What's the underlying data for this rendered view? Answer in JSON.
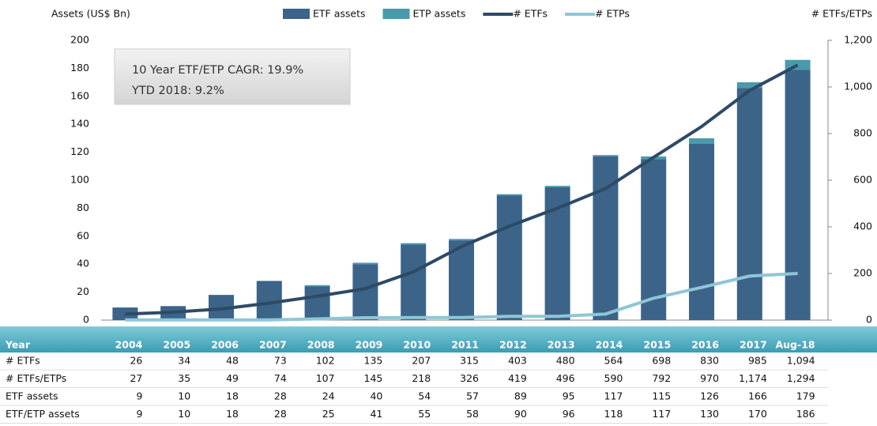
{
  "chart_data": {
    "type": "bar-line",
    "y_label": "Assets (US$ Bn)",
    "y2_label": "# ETFs/ETPs",
    "annotations": [
      "10 Year ETF/ETP CAGR: 19.9%",
      "YTD 2018: 9.2%"
    ],
    "categories": [
      "2004",
      "2005",
      "2006",
      "2007",
      "2008",
      "2009",
      "2010",
      "2011",
      "2012",
      "2013",
      "2014",
      "2015",
      "2016",
      "2017",
      "Aug-18"
    ],
    "series": [
      {
        "name": "ETF assets",
        "kind": "bar",
        "color": "#3b6488",
        "values": [
          9,
          10,
          18,
          28,
          24,
          40,
          54,
          57,
          89,
          95,
          117,
          115,
          126,
          166,
          179
        ]
      },
      {
        "name": "ETP assets",
        "kind": "bar",
        "color": "#4a9aab",
        "values": [
          0,
          0,
          0,
          0,
          1,
          1,
          1,
          1,
          1,
          1,
          1,
          2,
          4,
          4,
          7
        ]
      },
      {
        "name": "# ETFs",
        "kind": "line",
        "axis": "y2",
        "color": "#2d4a66",
        "values": [
          26,
          34,
          48,
          73,
          102,
          135,
          207,
          315,
          403,
          480,
          564,
          698,
          830,
          985,
          1094
        ]
      },
      {
        "name": "# ETPs",
        "kind": "line",
        "axis": "y2",
        "color": "#8fc6d6",
        "values": [
          1,
          1,
          1,
          1,
          5,
          10,
          11,
          11,
          16,
          16,
          26,
          94,
          140,
          189,
          200
        ]
      }
    ],
    "ylim": [
      0,
      200
    ],
    "yticks": [
      0,
      20,
      40,
      60,
      80,
      100,
      120,
      140,
      160,
      180,
      200
    ],
    "y2lim": [
      0,
      1200
    ],
    "y2ticks": [
      0,
      200,
      400,
      600,
      800,
      {
        "value": 1000,
        "label": "1,000"
      },
      {
        "value": 1200,
        "label": "1,200"
      }
    ],
    "grid": false
  },
  "table": {
    "header": "Year",
    "rows": [
      {
        "label": "# ETFs",
        "values": [
          26,
          34,
          48,
          73,
          102,
          135,
          207,
          315,
          403,
          480,
          564,
          698,
          830,
          985,
          "1,094"
        ]
      },
      {
        "label": "# ETFs/ETPs",
        "values": [
          27,
          35,
          49,
          74,
          107,
          145,
          218,
          326,
          419,
          496,
          590,
          792,
          970,
          "1,174",
          "1,294"
        ]
      },
      {
        "label": "ETF assets",
        "values": [
          9,
          10,
          18,
          28,
          24,
          40,
          54,
          57,
          89,
          95,
          117,
          115,
          126,
          166,
          179
        ]
      },
      {
        "label": "ETF/ETP assets",
        "values": [
          9,
          10,
          18,
          28,
          25,
          41,
          55,
          58,
          90,
          96,
          118,
          117,
          130,
          170,
          186
        ]
      }
    ]
  }
}
